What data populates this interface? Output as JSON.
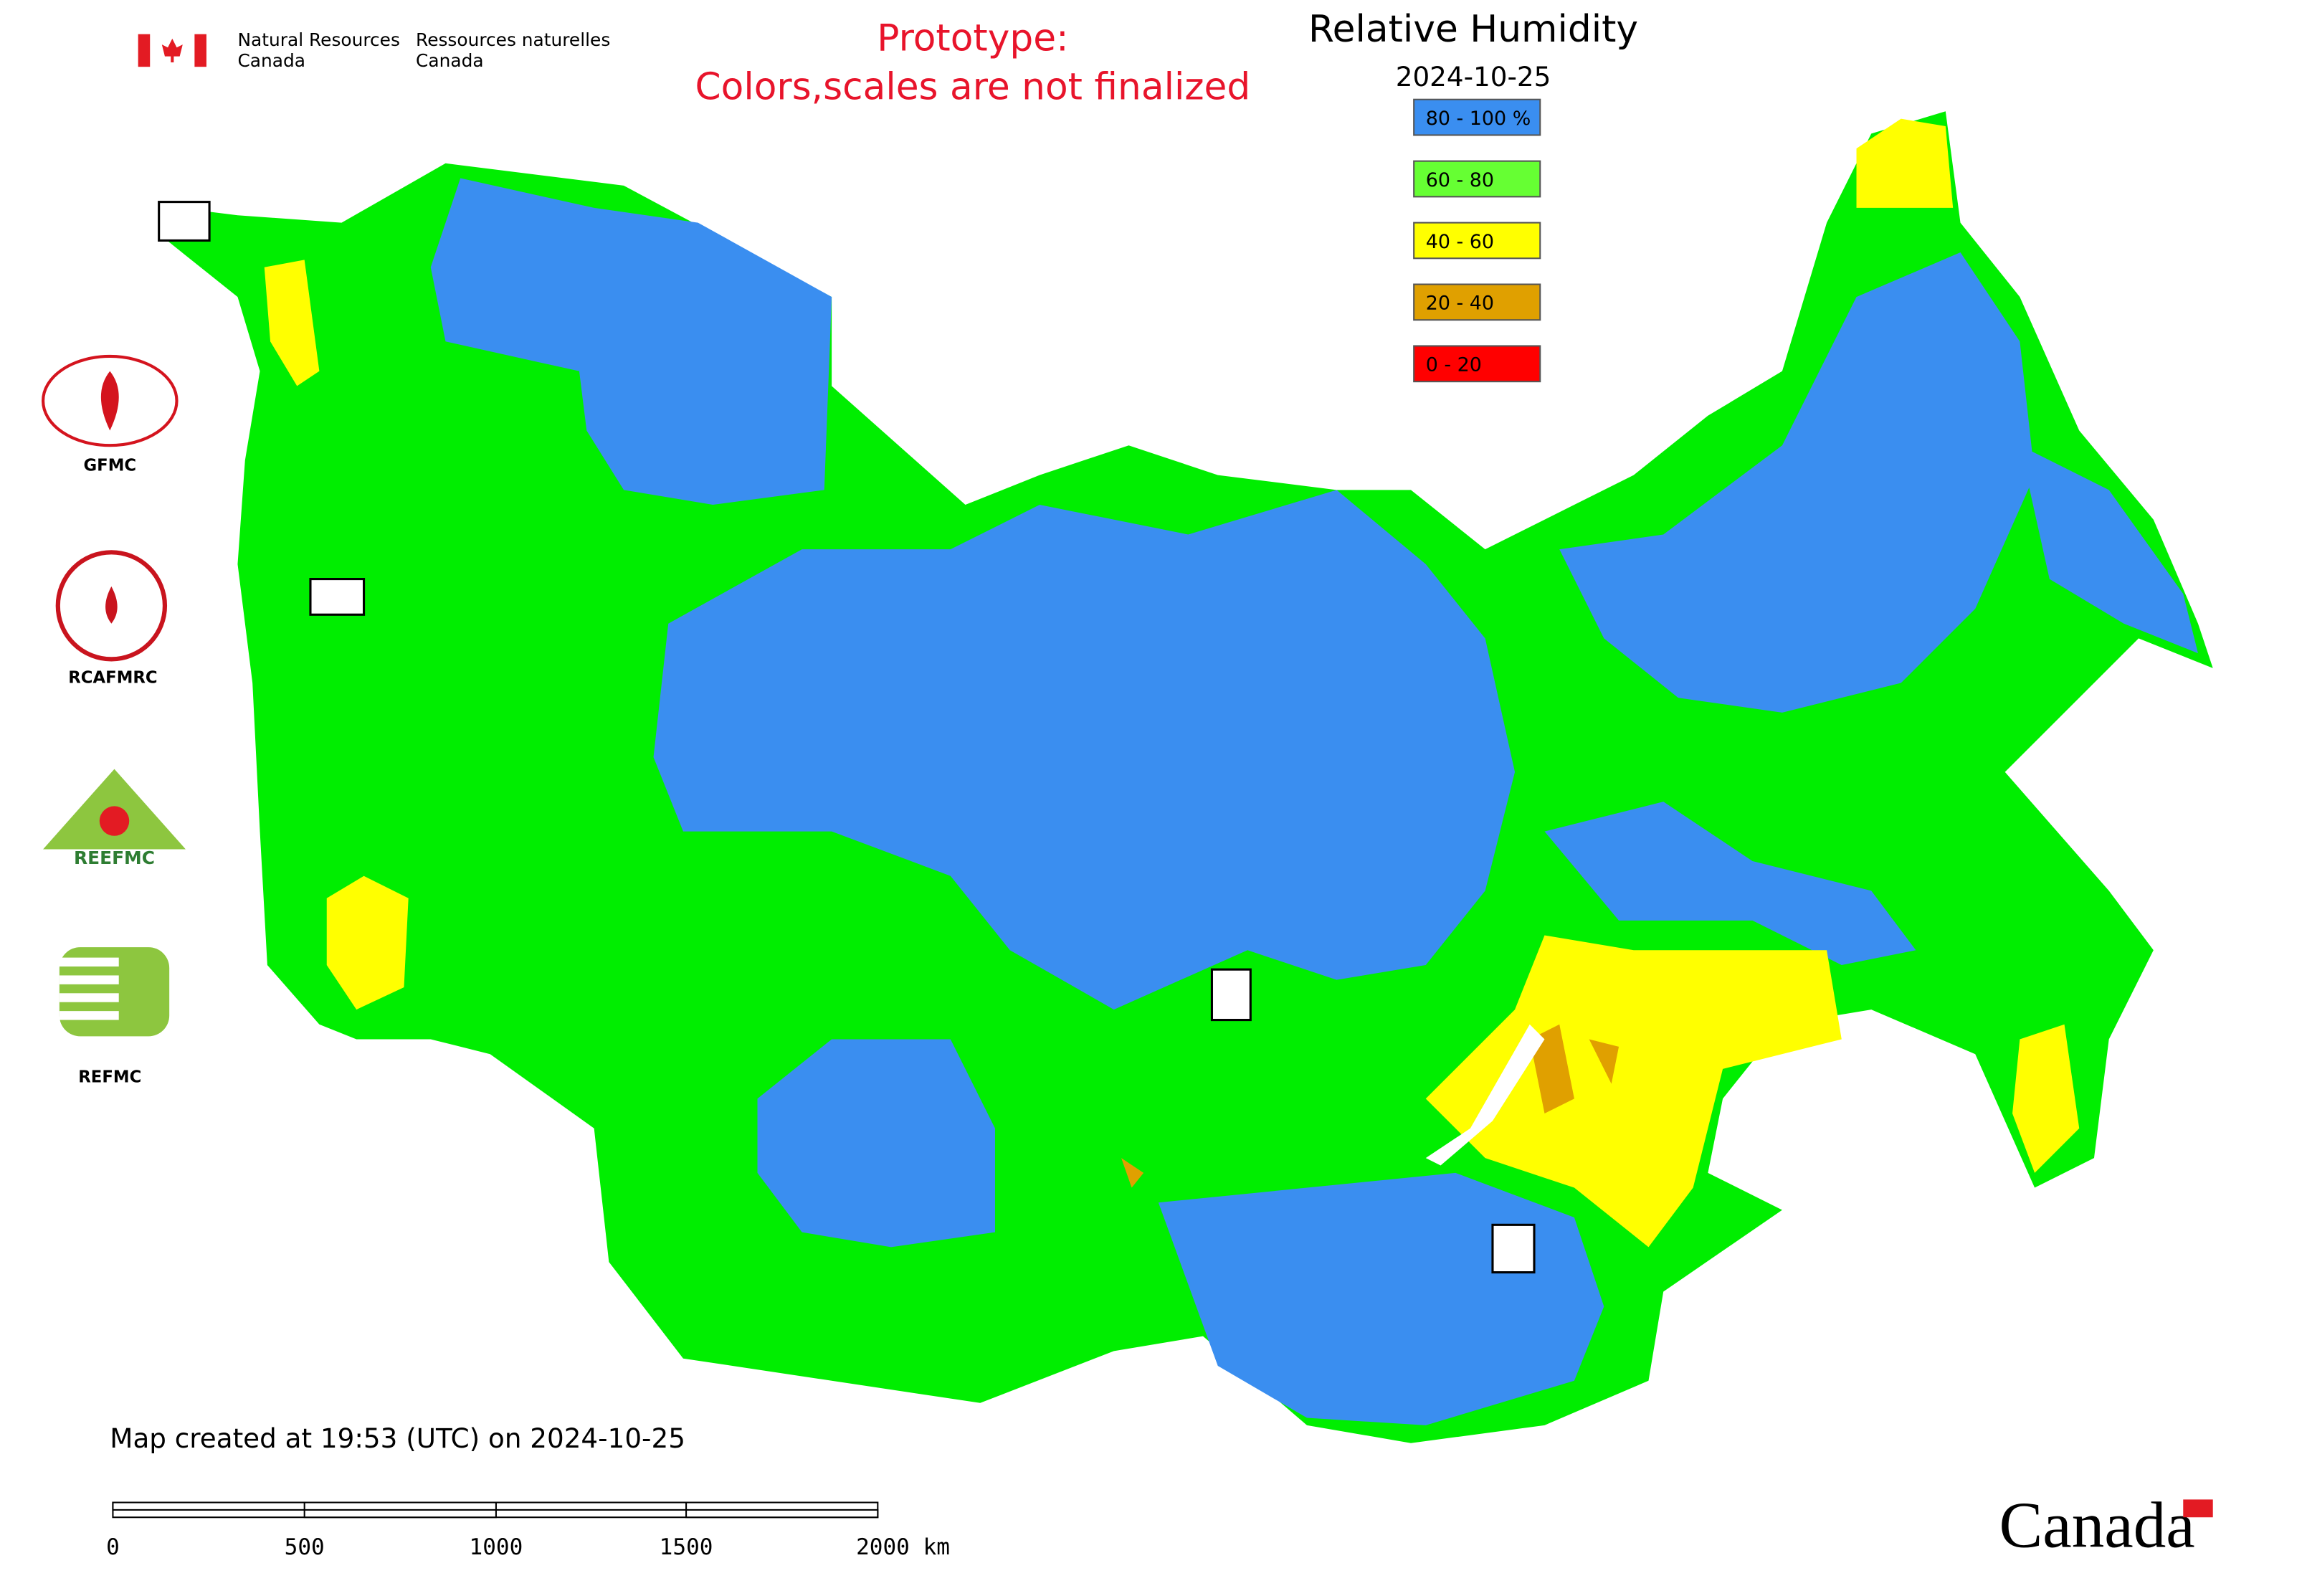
{
  "header": {
    "agency_en": [
      "Natural Resources",
      "Canada"
    ],
    "agency_fr": [
      "Ressources naturelles",
      "Canada"
    ]
  },
  "notice": [
    "Prototype:",
    "Colors,scales are not finalized"
  ],
  "legend": {
    "title": "Relative Humidity",
    "date": "2024-10-25",
    "items": [
      {
        "label": "80 - 100 %",
        "color": "#3a8ef0"
      },
      {
        "label": "60 - 80",
        "color": "#66ff33"
      },
      {
        "label": "40 - 60",
        "color": "#ffff00"
      },
      {
        "label": "20 - 40",
        "color": "#e0a000"
      },
      {
        "label": "0 - 20",
        "color": "#ff0000"
      }
    ]
  },
  "logos": [
    "GFMC",
    "RCAFMRC",
    "REEFMC",
    "REFMC"
  ],
  "footer": {
    "created": "Map created at 19:53 (UTC) on 2024-10-25",
    "scale_labels": [
      "0",
      "500",
      "1000",
      "1500",
      "2000 km"
    ],
    "wordmark": "Canada"
  }
}
